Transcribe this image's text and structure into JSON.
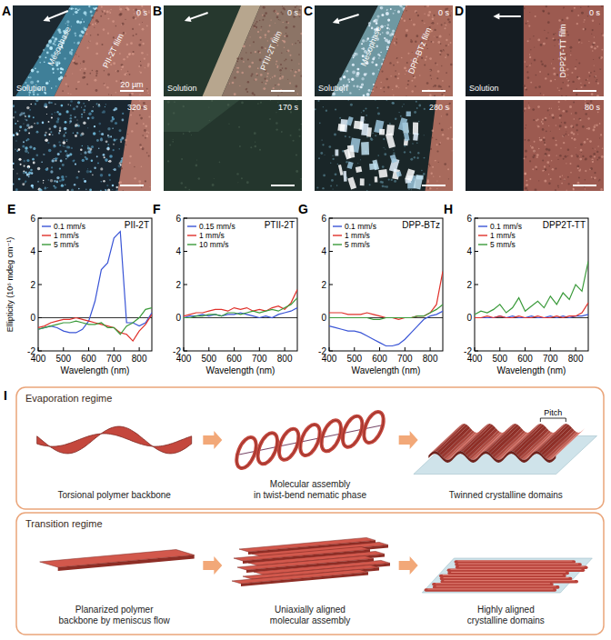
{
  "micrographs": [
    {
      "panel": "A",
      "top_time": "0 s",
      "bottom_time": "320 s",
      "film": "PII-2T film",
      "mesophase": "Mesophase",
      "solution": "Solution",
      "scale_bar": "20 µm"
    },
    {
      "panel": "B",
      "top_time": "0 s",
      "bottom_time": "170 s",
      "film": "PTII-2T film",
      "solution": "Solution"
    },
    {
      "panel": "C",
      "top_time": "0 s",
      "bottom_time": "280 s",
      "film": "DPP-BTz film",
      "mesophase": "Mesophase",
      "solution": "Solution"
    },
    {
      "panel": "D",
      "top_time": "0 s",
      "bottom_time": "80 s",
      "film": "DPP2T-TT film",
      "solution": "Solution"
    }
  ],
  "chart_data": [
    {
      "type": "line",
      "panel": "E",
      "title": "PII-2T",
      "x_label": "Wavelength (nm)",
      "y_label": "Ellipticity (10⁶ mdeg cm⁻¹)",
      "x": [
        400,
        425,
        450,
        475,
        500,
        525,
        550,
        575,
        600,
        625,
        650,
        675,
        700,
        725,
        750,
        775,
        800,
        825,
        850
      ],
      "xlim": [
        400,
        850
      ],
      "xticks": [
        400,
        500,
        600,
        700,
        800
      ],
      "ylim": [
        -2,
        6
      ],
      "yticks": [
        -2,
        0,
        2,
        4,
        6
      ],
      "legend": "top-left",
      "series": [
        {
          "name": "0.1 mm/s",
          "color": "#3a55d6",
          "values": [
            -0.7,
            -0.6,
            -0.5,
            -0.6,
            -0.8,
            -0.9,
            -0.9,
            -0.7,
            -0.2,
            1.0,
            2.9,
            3.3,
            4.8,
            5.2,
            -0.3,
            -0.3,
            -0.5,
            -0.3,
            0.3
          ]
        },
        {
          "name": "1 mm/s",
          "color": "#e0302a",
          "values": [
            -0.6,
            -0.5,
            -0.3,
            -0.2,
            -0.1,
            -0.1,
            0,
            -0.1,
            -0.2,
            -0.3,
            -0.4,
            -0.5,
            -0.6,
            -0.9,
            -1.0,
            -1.4,
            -0.8,
            -0.4,
            0.2
          ]
        },
        {
          "name": "5 mm/s",
          "color": "#3a9a3a",
          "values": [
            -0.7,
            -0.6,
            -0.5,
            -0.4,
            -0.3,
            -0.3,
            -0.2,
            -0.3,
            -0.4,
            -0.4,
            -0.3,
            -0.6,
            -0.6,
            -1.0,
            -0.5,
            -0.3,
            0,
            0.5,
            0.6
          ]
        }
      ]
    },
    {
      "type": "line",
      "panel": "F",
      "title": "PTII-2T",
      "x_label": "Wavelength (nm)",
      "x": [
        400,
        425,
        450,
        475,
        500,
        525,
        550,
        575,
        600,
        625,
        650,
        675,
        700,
        725,
        750,
        775,
        800,
        825,
        850
      ],
      "xlim": [
        400,
        850
      ],
      "xticks": [
        400,
        500,
        600,
        700,
        800
      ],
      "ylim": [
        -2,
        6
      ],
      "yticks": [
        -2,
        0,
        2,
        4,
        6
      ],
      "legend": "top-left",
      "series": [
        {
          "name": "0.15 mm/s",
          "color": "#3a55d6",
          "values": [
            0,
            0.1,
            0.1,
            0.2,
            0.1,
            0.2,
            0.1,
            0.2,
            0.2,
            0.3,
            0.2,
            0.1,
            0,
            0.1,
            0,
            0.2,
            0.3,
            0.4,
            0.6
          ]
        },
        {
          "name": "1 mm/s",
          "color": "#e0302a",
          "values": [
            0.1,
            0.2,
            0.3,
            0.3,
            0.4,
            0.5,
            0.5,
            0.4,
            0.6,
            0.5,
            0.6,
            0.4,
            0.5,
            0.4,
            0.6,
            0.7,
            0.5,
            0.9,
            1.7
          ]
        },
        {
          "name": "10 mm/s",
          "color": "#3a9a3a",
          "values": [
            0,
            0,
            0.1,
            0.1,
            0.2,
            0.2,
            0.1,
            0.3,
            0.3,
            0.2,
            0.3,
            0.4,
            0.3,
            0.4,
            0.5,
            0.4,
            0.6,
            0.8,
            1.2
          ]
        }
      ]
    },
    {
      "type": "line",
      "panel": "G",
      "title": "DPP-BTz",
      "x_label": "Wavelength (nm)",
      "x": [
        400,
        425,
        450,
        475,
        500,
        525,
        550,
        575,
        600,
        625,
        650,
        675,
        700,
        725,
        750,
        775,
        800,
        825,
        850
      ],
      "xlim": [
        400,
        850
      ],
      "xticks": [
        400,
        500,
        600,
        700,
        800
      ],
      "ylim": [
        -2,
        6
      ],
      "yticks": [
        -2,
        0,
        2,
        4,
        6
      ],
      "legend": "top-left",
      "series": [
        {
          "name": "0.1 mm/s",
          "color": "#3a55d6",
          "values": [
            -0.5,
            -0.6,
            -0.7,
            -0.8,
            -0.8,
            -0.9,
            -1.1,
            -1.3,
            -1.5,
            -1.7,
            -1.7,
            -1.6,
            -1.3,
            -0.9,
            -0.5,
            -0.1,
            0.1,
            0.2,
            0.4
          ]
        },
        {
          "name": "1 mm/s",
          "color": "#e0302a",
          "values": [
            0.3,
            0.3,
            0.3,
            0.2,
            0.2,
            0.2,
            0.3,
            0.2,
            0.1,
            0,
            0,
            -0.1,
            0,
            0,
            0.1,
            0.1,
            0.3,
            0.8,
            2.8
          ]
        },
        {
          "name": "5 mm/s",
          "color": "#3a9a3a",
          "values": [
            0,
            0,
            0,
            0,
            0,
            0,
            0,
            -0.1,
            -0.1,
            0,
            0,
            0,
            0,
            0,
            0.1,
            0.1,
            0.3,
            0.5,
            0.8
          ]
        }
      ]
    },
    {
      "type": "line",
      "panel": "H",
      "title": "DPP2T-TT",
      "x_label": "Wavelength (nm)",
      "x": [
        400,
        425,
        450,
        475,
        500,
        525,
        550,
        575,
        600,
        625,
        650,
        675,
        700,
        725,
        750,
        775,
        800,
        825,
        850
      ],
      "xlim": [
        400,
        850
      ],
      "xticks": [
        400,
        500,
        600,
        700,
        800
      ],
      "ylim": [
        -2,
        6
      ],
      "yticks": [
        -2,
        0,
        2,
        4,
        6
      ],
      "legend": "top-left",
      "series": [
        {
          "name": "0.1 mm/s",
          "color": "#3a55d6",
          "values": [
            0,
            0,
            0,
            0,
            0.1,
            0,
            0.1,
            0,
            0,
            0.1,
            0,
            0,
            0.1,
            0,
            0.1,
            0,
            0.1,
            0.1,
            0.2
          ]
        },
        {
          "name": "1 mm/s",
          "color": "#e0302a",
          "values": [
            0,
            0,
            0.1,
            0,
            0.1,
            0,
            0,
            0.1,
            0,
            0,
            0.1,
            0,
            0,
            0.1,
            0,
            0.1,
            0.1,
            0.3,
            0.9
          ]
        },
        {
          "name": "5 mm/s",
          "color": "#3a9a3a",
          "values": [
            0.2,
            0.4,
            0.3,
            0.5,
            0.8,
            0.3,
            0.6,
            1.2,
            0.4,
            0.7,
            1.0,
            0.6,
            1.3,
            0.8,
            1.5,
            1.1,
            2.0,
            1.6,
            3.4
          ]
        }
      ]
    }
  ],
  "schematic": {
    "panel": "I",
    "regimes": [
      {
        "title": "Evaporation regime",
        "pitch": "Pitch",
        "steps": [
          [
            "Torsional polymer backbone"
          ],
          [
            "Molecular assembly",
            "in twist-bend nematic phase"
          ],
          [
            "Twinned crystalline domains"
          ]
        ]
      },
      {
        "title": "Transition regime",
        "steps": [
          [
            "Planarized polymer",
            "backbone by meniscus flow"
          ],
          [
            "Uniaxially aligned",
            "molecular assembly"
          ],
          [
            "Highly aligned",
            "crystalline domains"
          ]
        ]
      }
    ]
  }
}
